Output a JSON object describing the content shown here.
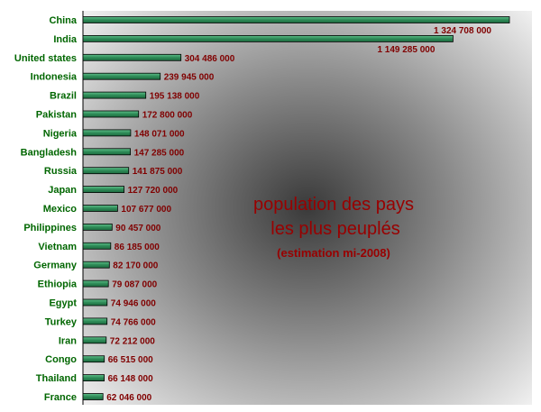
{
  "colors": {
    "bar_fill": "#2e8b57",
    "bar_stroke": "#000000",
    "category_text": "#006600",
    "value_text": "#800000",
    "title_text": "#990000",
    "plot_edge": "#f4f4f4",
    "plot_center": "#3a3a3a"
  },
  "chart_data": {
    "type": "bar",
    "orientation": "horizontal",
    "title": "population des pays",
    "title_line2": "les plus peuplés",
    "subtitle": "(estimation mi-2008)",
    "xlabel": "",
    "ylabel": "",
    "grid": false,
    "legend": "none",
    "xlim": [
      0,
      1400000000
    ],
    "categories": [
      "China",
      "India",
      "United states",
      "Indonesia",
      "Brazil",
      "Pakistan",
      "Nigeria",
      "Bangladesh",
      "Russia",
      "Japan",
      "Mexico",
      "Philippines",
      "Vietnam",
      "Germany",
      "Ethiopia",
      "Egypt",
      "Turkey",
      "Iran",
      "Congo",
      "Thailand",
      "France"
    ],
    "values": [
      1324708000,
      1149285000,
      304486000,
      239945000,
      195138000,
      172800000,
      148071000,
      147285000,
      141875000,
      127720000,
      107677000,
      90457000,
      86185000,
      82170000,
      79087000,
      74946000,
      74766000,
      72212000,
      66515000,
      66148000,
      62046000
    ],
    "value_labels": [
      "1 324 708 000",
      "1 149 285 000",
      "304 486 000",
      "239 945 000",
      "195 138 000",
      "172 800 000",
      "148 071 000",
      "147 285 000",
      "141 875 000",
      "127 720 000",
      "107 677 000",
      "90 457 000",
      "86 185 000",
      "82 170 000",
      "79 087 000",
      "74 946 000",
      "74 766 000",
      "72 212 000",
      "66 515 000",
      "66 148 000",
      "62 046 000"
    ]
  }
}
